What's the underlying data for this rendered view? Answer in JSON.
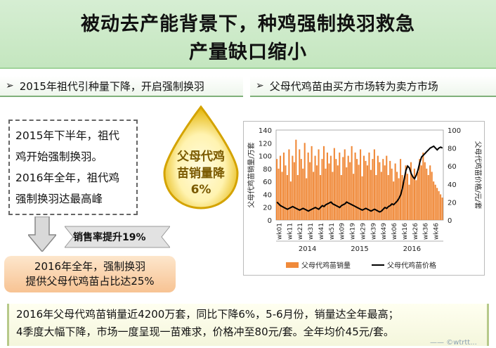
{
  "title": {
    "line1": "被动去产能背景下，种鸡强制换羽救急",
    "line2": "产量缺口缩小"
  },
  "left_section": {
    "heading": "2015年祖代引种量下降，开启强制换羽",
    "box_lines": [
      "2015年下半年，祖代",
      "鸡开始强制换羽。",
      "2016年全年，祖代鸡",
      "强制换羽达最高峰"
    ],
    "drop_lines": [
      "父母代鸡",
      "苗销量降",
      "6%"
    ],
    "rate_label": "销售率提升19%",
    "result_lines": [
      "2016年全年，强制换羽",
      "提供父母代鸡苗占比达25%"
    ]
  },
  "right_section": {
    "heading": "父母代鸡苗由买方市场转为卖方市场"
  },
  "bottom_text": {
    "line1": "2016年父母代鸡苗销量近4200万套，同比下降6%，5-6月份，销量达全年最高；",
    "line2": "4季度大幅下降，市场一度呈现一苗难求，价格冲至80元/套。全年均价45元/套。"
  },
  "watermark": "—— ©wtrtt...",
  "colors": {
    "bar": "#f08a3a",
    "line": "#000000",
    "title_band": "#c8e8c3",
    "drop_gold": "#e6b800"
  },
  "chart_data": {
    "type": "bar",
    "title": "",
    "ylabel_left": "父母代鸡苗销量/万套",
    "ylabel_right": "父母代鸡苗价格/元/套",
    "ylim_left": [
      0,
      140
    ],
    "ylim_right": [
      0,
      100
    ],
    "yticks_left": [
      "0",
      "20",
      "40",
      "60",
      "80",
      "100",
      "120",
      "140"
    ],
    "yticks_right": [
      "0",
      "20",
      "40",
      "60",
      "80",
      "100"
    ],
    "xtick_labels": [
      "wk01",
      "wk11",
      "wk21",
      "wk31",
      "wk41",
      "wk51",
      "wk09",
      "wk19",
      "wk29",
      "wk39",
      "wk49",
      "wk06",
      "wk16",
      "wk26",
      "wk36",
      "wk46"
    ],
    "years": [
      "2014",
      "2015",
      "2016"
    ],
    "legend": [
      "父母代鸡苗销量",
      "父母代鸡苗价格"
    ],
    "series": [
      {
        "name": "父母代鸡苗销量",
        "kind": "bar",
        "values": [
          95,
          80,
          100,
          75,
          105,
          85,
          70,
          110,
          60,
          100,
          90,
          125,
          70,
          110,
          95,
          80,
          120,
          65,
          105,
          90,
          115,
          75,
          100,
          85,
          110,
          70,
          95,
          115,
          80,
          105,
          88,
          100,
          75,
          112,
          95,
          85,
          105,
          70,
          98,
          110,
          82,
          100,
          90,
          115,
          72,
          105,
          95,
          86,
          110,
          68,
          100,
          92,
          85,
          105,
          78,
          95,
          110,
          70,
          100,
          90,
          75,
          95,
          85,
          100,
          70,
          92,
          80,
          60,
          88,
          75,
          65,
          95,
          70,
          60,
          85,
          72,
          55,
          90,
          68,
          80,
          62,
          75,
          95,
          85,
          105,
          90,
          80,
          70,
          85,
          75,
          60,
          55,
          50,
          45,
          40,
          35
        ]
      },
      {
        "name": "父母代鸡苗价格",
        "kind": "line",
        "values": [
          20,
          18,
          16,
          15,
          14,
          13,
          12,
          13,
          14,
          15,
          14,
          13,
          12,
          11,
          12,
          13,
          12,
          11,
          10,
          11,
          12,
          13,
          14,
          13,
          12,
          14,
          16,
          15,
          17,
          18,
          19,
          20,
          18,
          17,
          16,
          15,
          14,
          16,
          17,
          18,
          20,
          19,
          18,
          17,
          16,
          15,
          14,
          13,
          12,
          11,
          12,
          13,
          12,
          11,
          10,
          11,
          12,
          11,
          10,
          9,
          10,
          12,
          14,
          13,
          15,
          16,
          18,
          17,
          19,
          21,
          24,
          28,
          35,
          45,
          55,
          60,
          58,
          52,
          48,
          46,
          50,
          56,
          64,
          70,
          72,
          74,
          76,
          78,
          80,
          81,
          82,
          80,
          78,
          80,
          81,
          80
        ]
      }
    ]
  }
}
